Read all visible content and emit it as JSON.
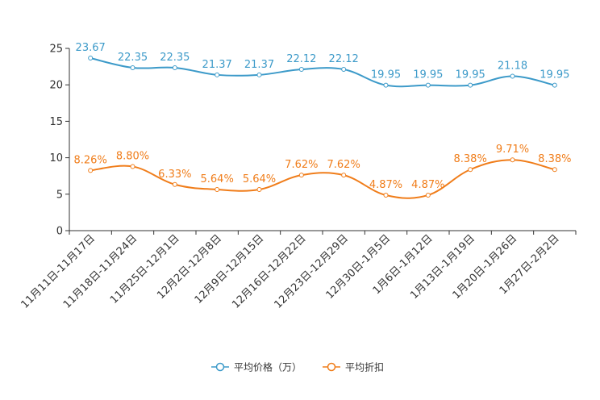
{
  "chart_data": {
    "type": "line",
    "categories": [
      "11月11日-11月17日",
      "11月18日-11月24日",
      "11月25日-12月1日",
      "12月2日-12月8日",
      "12月9日-12月15日",
      "12月16日-12月22日",
      "12月23日-12月29日",
      "12月30日-1月5日",
      "1月6日-1月12日",
      "1月13日-1月19日",
      "1月20日-1月26日",
      "1月27日-2月2日"
    ],
    "ylim": [
      0,
      25
    ],
    "yticks": [
      "0",
      "5",
      "10",
      "15",
      "20",
      "25"
    ],
    "series": [
      {
        "name": "平均价格（万）",
        "color": "#3c9ac9",
        "values": [
          23.67,
          22.35,
          22.35,
          21.37,
          21.37,
          22.12,
          22.12,
          19.95,
          19.95,
          19.95,
          21.18,
          19.95
        ],
        "labels": [
          "23.67",
          "22.35",
          "22.35",
          "21.37",
          "21.37",
          "22.12",
          "22.12",
          "19.95",
          "19.95",
          "19.95",
          "21.18",
          "19.95"
        ]
      },
      {
        "name": "平均折扣",
        "color": "#f07d1a",
        "values": [
          8.26,
          8.8,
          6.33,
          5.64,
          5.64,
          7.62,
          7.62,
          4.87,
          4.87,
          8.38,
          9.71,
          8.38
        ],
        "labels": [
          "8.26%",
          "8.80%",
          "6.33%",
          "5.64%",
          "5.64%",
          "7.62%",
          "7.62%",
          "4.87%",
          "4.87%",
          "8.38%",
          "9.71%",
          "8.38%"
        ]
      }
    ],
    "legend_position": "bottom-center"
  }
}
